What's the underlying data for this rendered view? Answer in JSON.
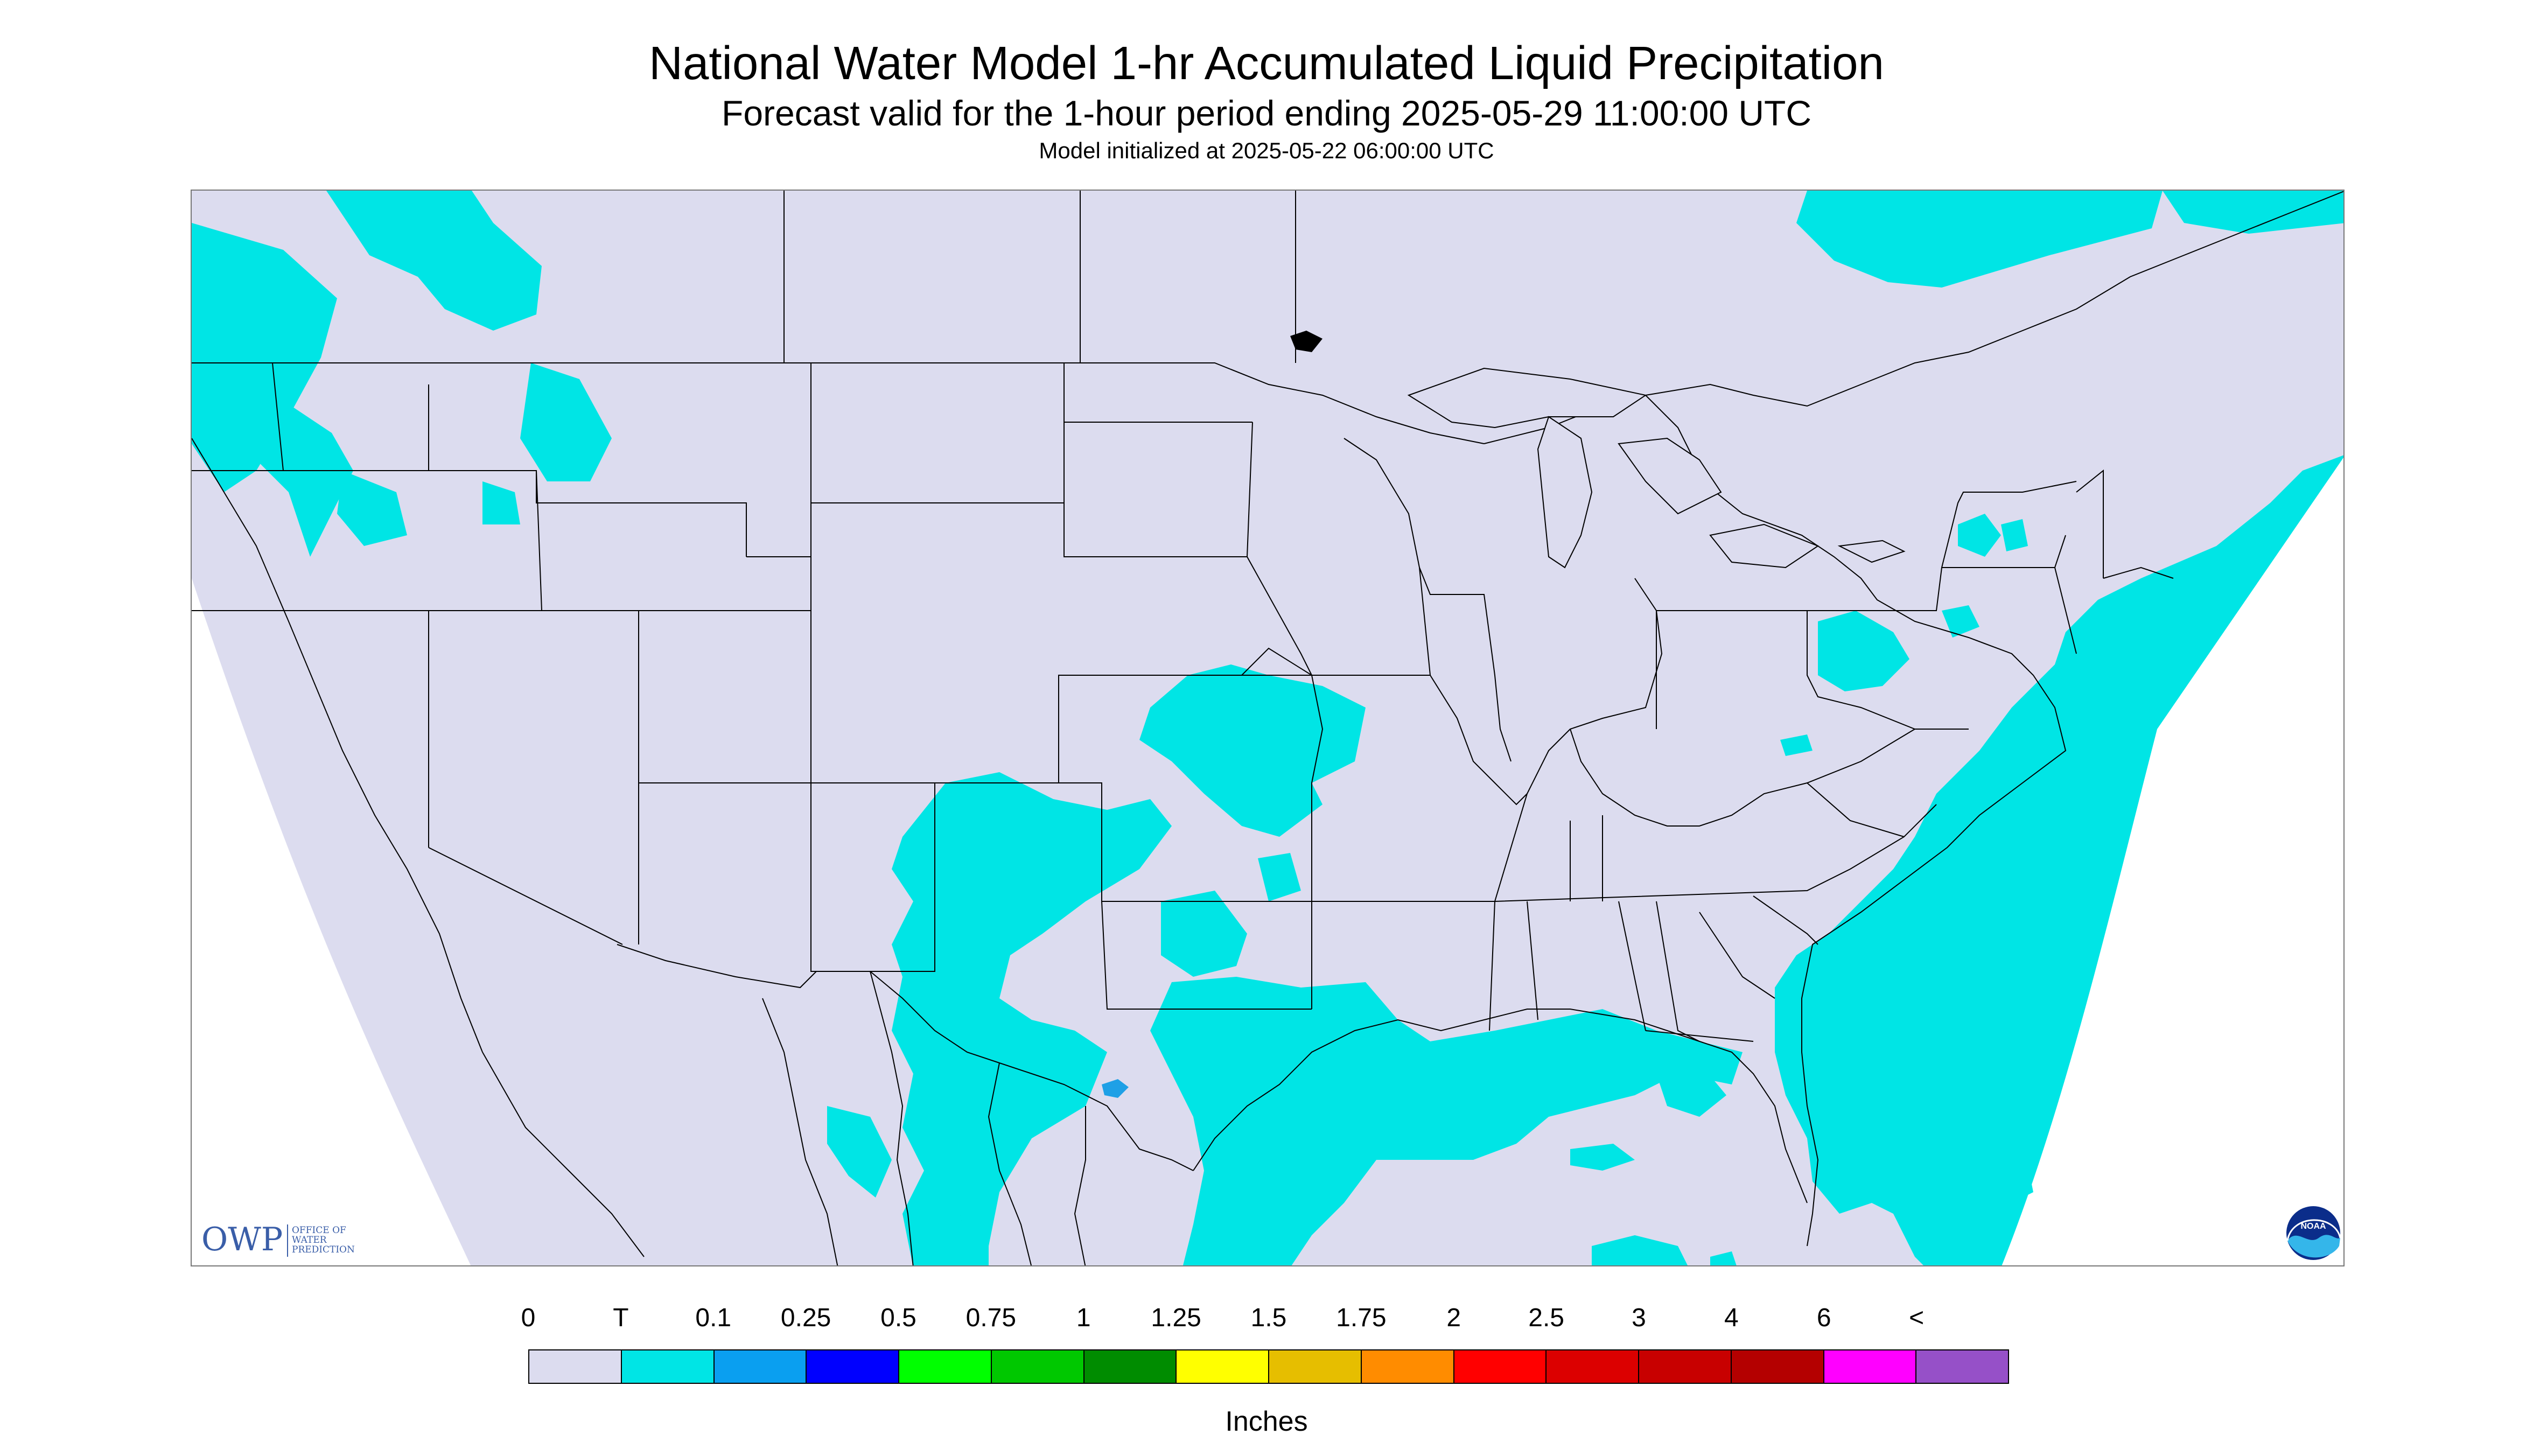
{
  "title": "National Water Model 1-hr Accumulated Liquid Precipitation",
  "subtitle": "Forecast valid for the 1-hour period ending 2025-05-29 11:00:00 UTC",
  "init_line": "Model initialized at 2025-05-22 06:00:00 UTC",
  "logos": {
    "owp_mark": "OWP",
    "owp_text": [
      "OFFICE OF",
      "WATER",
      "PREDICTION"
    ],
    "noaa_text": "NOAA"
  },
  "colors": {
    "no_data_bg": "#dcdcef",
    "trace": "#00e5e5",
    "light_blue": "#1ea0e6",
    "boundary": "#000000"
  },
  "legend": {
    "labels": [
      "0",
      "T",
      "0.1",
      "0.25",
      "0.5",
      "0.75",
      "1",
      "1.25",
      "1.5",
      "1.75",
      "2",
      "2.5",
      "3",
      "4",
      "6",
      "<"
    ],
    "colors": [
      "#dcdcef",
      "#00e5e5",
      "#0a9ff0",
      "#0000ff",
      "#00ff00",
      "#00c800",
      "#008c00",
      "#ffff00",
      "#e6be00",
      "#ff8c00",
      "#ff0000",
      "#dc0000",
      "#c80000",
      "#b40000",
      "#ff00ff",
      "#9650c8"
    ],
    "units": "Inches"
  }
}
